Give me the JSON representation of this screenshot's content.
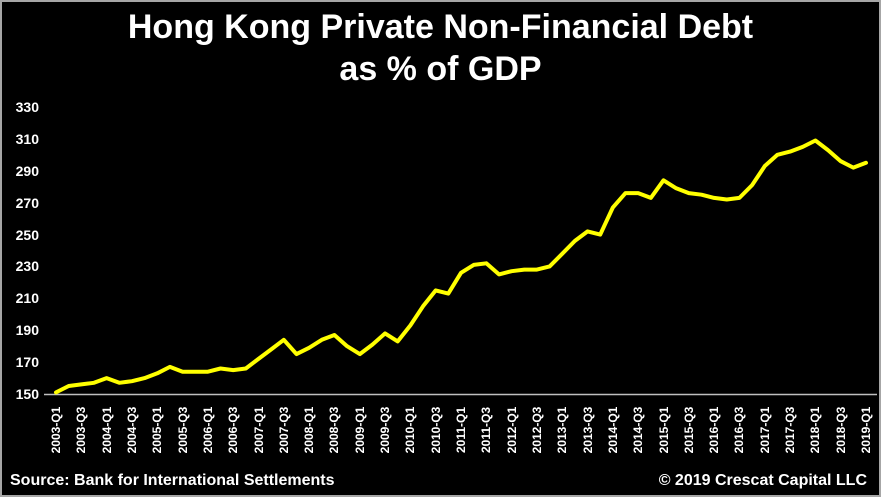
{
  "title": {
    "line1": "Hong Kong Private Non-Financial Debt",
    "line2": "as % of GDP"
  },
  "footer": {
    "source": "Source: Bank for International Settlements",
    "copyright": "© 2019 Crescat Capital LLC"
  },
  "colors": {
    "background": "#000000",
    "text": "#ffffff",
    "line": "#ffff00",
    "axis": "#bfbfbf",
    "frame": "#a6a6a6"
  },
  "chart_data": {
    "type": "line",
    "title": "Hong Kong Private Non-Financial Debt as % of GDP",
    "xlabel": "",
    "ylabel": "",
    "ylim": [
      150,
      330
    ],
    "yticks": [
      150,
      170,
      190,
      210,
      230,
      250,
      270,
      290,
      310,
      330
    ],
    "xtick_every": 2,
    "grid": false,
    "legend": "none",
    "line_color": "#ffff00",
    "background": "#000000",
    "x": [
      "2003-Q1",
      "2003-Q2",
      "2003-Q3",
      "2003-Q4",
      "2004-Q1",
      "2004-Q2",
      "2004-Q3",
      "2004-Q4",
      "2005-Q1",
      "2005-Q2",
      "2005-Q3",
      "2005-Q4",
      "2006-Q1",
      "2006-Q2",
      "2006-Q3",
      "2006-Q4",
      "2007-Q1",
      "2007-Q2",
      "2007-Q3",
      "2007-Q4",
      "2008-Q1",
      "2008-Q2",
      "2008-Q3",
      "2008-Q4",
      "2009-Q1",
      "2009-Q2",
      "2009-Q3",
      "2009-Q4",
      "2010-Q1",
      "2010-Q2",
      "2010-Q3",
      "2010-Q4",
      "2011-Q1",
      "2011-Q2",
      "2011-Q3",
      "2011-Q4",
      "2012-Q1",
      "2012-Q2",
      "2012-Q3",
      "2012-Q4",
      "2013-Q1",
      "2013-Q2",
      "2013-Q3",
      "2013-Q4",
      "2014-Q1",
      "2014-Q2",
      "2014-Q3",
      "2014-Q4",
      "2015-Q1",
      "2015-Q2",
      "2015-Q3",
      "2015-Q4",
      "2016-Q1",
      "2016-Q2",
      "2016-Q3",
      "2016-Q4",
      "2017-Q1",
      "2017-Q2",
      "2017-Q3",
      "2017-Q4",
      "2018-Q1",
      "2018-Q2",
      "2018-Q3",
      "2018-Q4",
      "2019-Q1"
    ],
    "values": [
      151,
      155,
      156,
      157,
      160,
      157,
      158,
      160,
      163,
      167,
      164,
      164,
      164,
      166,
      165,
      166,
      172,
      178,
      184,
      175,
      179,
      184,
      187,
      180,
      175,
      181,
      188,
      183,
      193,
      205,
      215,
      213,
      226,
      231,
      232,
      225,
      227,
      228,
      228,
      230,
      238,
      246,
      252,
      250,
      267,
      276,
      276,
      273,
      284,
      279,
      276,
      275,
      273,
      272,
      273,
      281,
      293,
      300,
      302,
      305,
      309,
      303,
      296,
      292,
      295
    ]
  }
}
